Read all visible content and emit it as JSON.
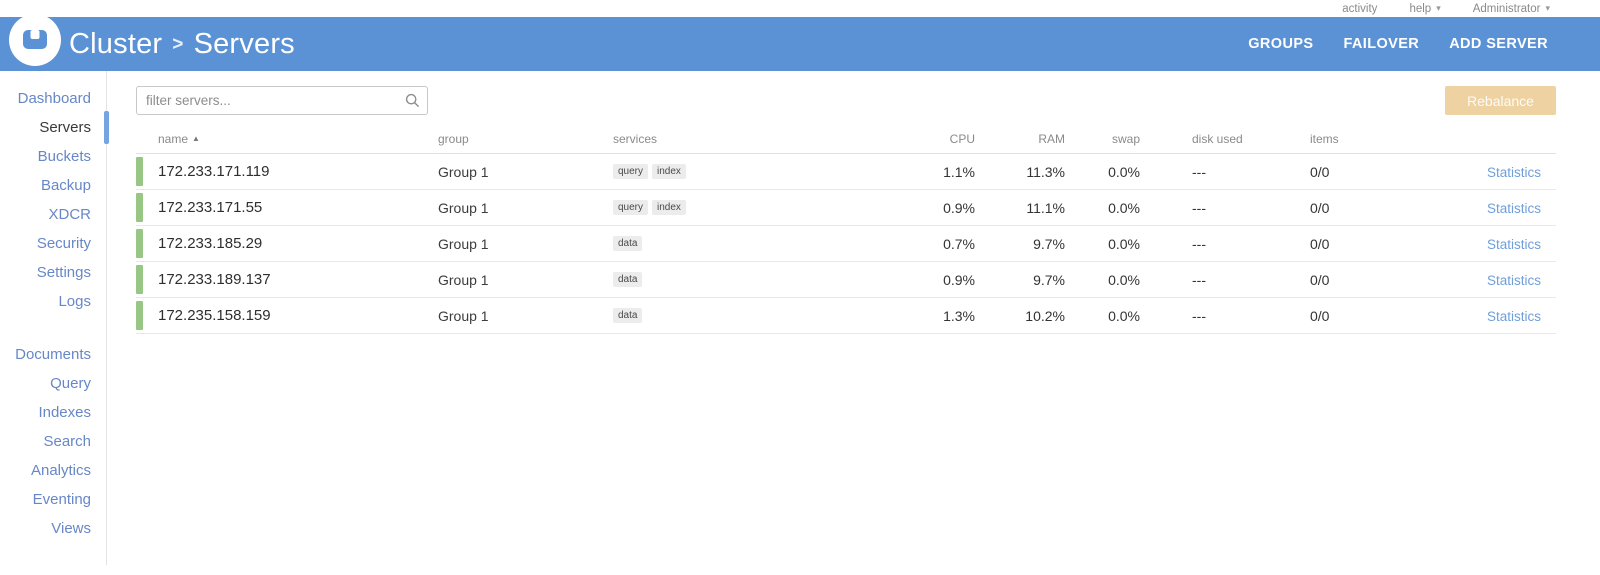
{
  "topstrip": {
    "activity_label": "activity",
    "help_label": "help",
    "user_label": "Administrator"
  },
  "icons": {
    "help_caret": "▾",
    "user_caret": "▾",
    "sort_ascending": "▲"
  },
  "header": {
    "breadcrumb_root": "Cluster",
    "breadcrumb_separator": ">",
    "breadcrumb_current": "Servers",
    "actions": [
      {
        "label": "GROUPS"
      },
      {
        "label": "FAILOVER"
      },
      {
        "label": "ADD SERVER"
      }
    ]
  },
  "sidebar": {
    "groups": [
      {
        "items": [
          {
            "label": "Dashboard",
            "active": false
          },
          {
            "label": "Servers",
            "active": true
          },
          {
            "label": "Buckets",
            "active": false
          },
          {
            "label": "Backup",
            "active": false
          },
          {
            "label": "XDCR",
            "active": false
          },
          {
            "label": "Security",
            "active": false
          },
          {
            "label": "Settings",
            "active": false
          },
          {
            "label": "Logs",
            "active": false
          }
        ]
      },
      {
        "items": [
          {
            "label": "Documents",
            "active": false
          },
          {
            "label": "Query",
            "active": false
          },
          {
            "label": "Indexes",
            "active": false
          },
          {
            "label": "Search",
            "active": false
          },
          {
            "label": "Analytics",
            "active": false
          },
          {
            "label": "Eventing",
            "active": false
          },
          {
            "label": "Views",
            "active": false
          }
        ]
      }
    ]
  },
  "toolbar": {
    "filter_placeholder": "filter servers...",
    "rebalance_label": "Rebalance"
  },
  "table": {
    "columns": [
      "name",
      "group",
      "services",
      "CPU",
      "RAM",
      "swap",
      "disk used",
      "items"
    ],
    "stats_label": "Statistics",
    "rows": [
      {
        "name": "172.233.171.119",
        "group": "Group 1",
        "services": [
          "query",
          "index"
        ],
        "cpu": "1.1%",
        "ram": "11.3%",
        "swap": "0.0%",
        "disk_used": "---",
        "items": "0/0"
      },
      {
        "name": "172.233.171.55",
        "group": "Group 1",
        "services": [
          "query",
          "index"
        ],
        "cpu": "0.9%",
        "ram": "11.1%",
        "swap": "0.0%",
        "disk_used": "---",
        "items": "0/0"
      },
      {
        "name": "172.233.185.29",
        "group": "Group 1",
        "services": [
          "data"
        ],
        "cpu": "0.7%",
        "ram": "9.7%",
        "swap": "0.0%",
        "disk_used": "---",
        "items": "0/0"
      },
      {
        "name": "172.233.189.137",
        "group": "Group 1",
        "services": [
          "data"
        ],
        "cpu": "0.9%",
        "ram": "9.7%",
        "swap": "0.0%",
        "disk_used": "---",
        "items": "0/0"
      },
      {
        "name": "172.235.158.159",
        "group": "Group 1",
        "services": [
          "data"
        ],
        "cpu": "1.3%",
        "ram": "10.2%",
        "swap": "0.0%",
        "disk_used": "---",
        "items": "0/0"
      }
    ]
  },
  "colors": {
    "header-blue": "#5b92d5",
    "sidebar-link": "#6787c8",
    "active-indicator": "#74a5e0",
    "health-green": "#97c685",
    "rebalance-bg": "#eed2a2",
    "link-blue": "#6f9fd8"
  }
}
